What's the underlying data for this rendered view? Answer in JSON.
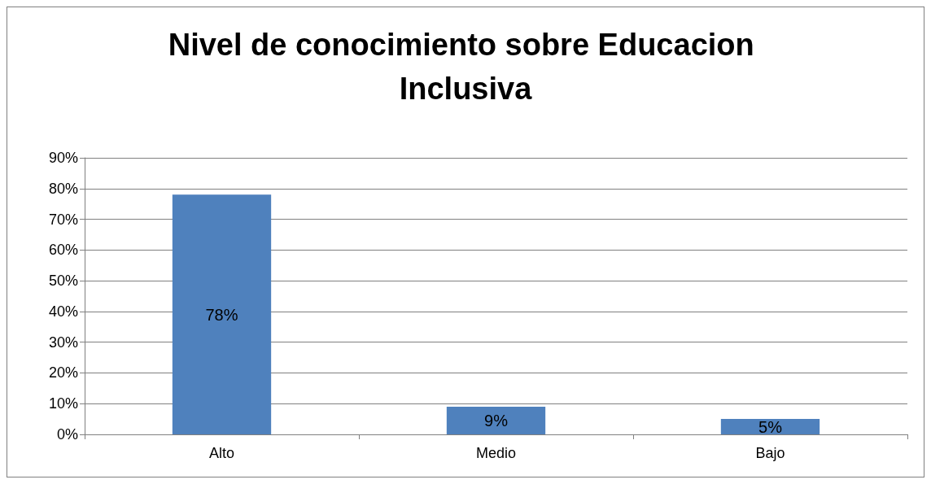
{
  "chart_data": {
    "type": "bar",
    "title": "Nivel de conocimiento sobre Educacion Inclusiva",
    "categories": [
      "Alto",
      "Medio",
      "Bajo"
    ],
    "values": [
      78,
      9,
      5
    ],
    "value_labels": [
      "78%",
      "9%",
      "5%"
    ],
    "color": "#4f81bd",
    "ylim": [
      0,
      90
    ],
    "yticks": [
      {
        "value": 0,
        "label": "0%"
      },
      {
        "value": 10,
        "label": "10%"
      },
      {
        "value": 20,
        "label": "20%"
      },
      {
        "value": 30,
        "label": "30%"
      },
      {
        "value": 40,
        "label": "40%"
      },
      {
        "value": 50,
        "label": "50%"
      },
      {
        "value": 60,
        "label": "60%"
      },
      {
        "value": 70,
        "label": "70%"
      },
      {
        "value": 80,
        "label": "80%"
      },
      {
        "value": 90,
        "label": "90%"
      }
    ],
    "grid": "y"
  }
}
